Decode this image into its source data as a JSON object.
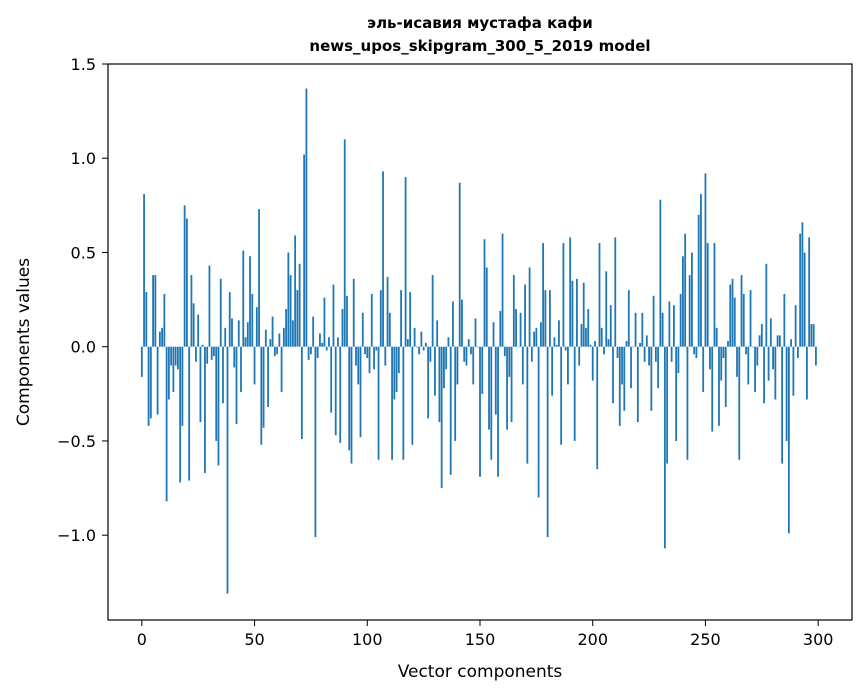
{
  "chart_data": {
    "type": "bar",
    "title_line1": "эль-исавия мустафа кафи",
    "title_line2": "news_upos_skipgram_300_5_2019 model",
    "xlabel": "Vector components",
    "ylabel": "Components values",
    "xlim": [
      -15,
      315
    ],
    "ylim": [
      -1.45,
      1.5
    ],
    "x_ticks": [
      0,
      50,
      100,
      150,
      200,
      250,
      300
    ],
    "x_tick_labels": [
      "0",
      "50",
      "100",
      "150",
      "200",
      "250",
      "300"
    ],
    "y_ticks": [
      -1.0,
      -0.5,
      0.0,
      0.5,
      1.0,
      1.5
    ],
    "y_tick_labels": [
      "−1.0",
      "−0.5",
      "0.0",
      "0.5",
      "1.0",
      "1.5"
    ],
    "color": "#1f77b4",
    "grid": false,
    "values": [
      -0.16,
      0.81,
      0.29,
      -0.42,
      -0.38,
      0.38,
      0.38,
      -0.36,
      0.08,
      0.1,
      0.28,
      -0.82,
      -0.28,
      -0.1,
      -0.24,
      -0.1,
      -0.12,
      -0.72,
      -0.42,
      0.75,
      0.68,
      -0.71,
      0.38,
      0.23,
      -0.08,
      0.17,
      -0.4,
      0.01,
      -0.67,
      -0.09,
      0.43,
      -0.07,
      -0.05,
      -0.5,
      -0.63,
      0.36,
      -0.3,
      0.1,
      -1.31,
      0.29,
      0.15,
      -0.11,
      -0.41,
      0.14,
      -0.24,
      0.51,
      0.05,
      0.13,
      0.48,
      0.28,
      -0.2,
      0.21,
      0.73,
      -0.52,
      -0.43,
      0.09,
      -0.32,
      0.04,
      0.16,
      -0.05,
      -0.04,
      0.07,
      -0.24,
      0.1,
      0.2,
      0.5,
      0.38,
      0.14,
      0.59,
      0.3,
      0.44,
      -0.49,
      1.02,
      1.37,
      -0.07,
      -0.04,
      0.16,
      -1.01,
      -0.06,
      0.07,
      0.02,
      0.26,
      -0.02,
      0.05,
      -0.35,
      0.33,
      -0.47,
      0.05,
      -0.51,
      0.2,
      1.1,
      0.27,
      -0.55,
      -0.62,
      0.36,
      -0.1,
      -0.2,
      -0.48,
      0.18,
      -0.04,
      -0.06,
      -0.14,
      0.28,
      -0.12,
      -0.02,
      -0.6,
      0.3,
      0.93,
      -0.1,
      0.37,
      0.18,
      -0.6,
      -0.28,
      -0.24,
      -0.14,
      0.3,
      -0.6,
      0.9,
      0.04,
      0.29,
      -0.52,
      0.1,
      0.0,
      -0.04,
      0.08,
      -0.02,
      0.02,
      -0.38,
      -0.08,
      0.38,
      -0.26,
      0.14,
      -0.4,
      -0.75,
      -0.22,
      -0.12,
      0.05,
      -0.68,
      0.24,
      -0.5,
      -0.2,
      0.87,
      0.25,
      -0.08,
      -0.1,
      0.04,
      -0.04,
      -0.2,
      0.15,
      0.0,
      -0.69,
      -0.25,
      0.57,
      0.42,
      -0.44,
      -0.6,
      0.13,
      -0.36,
      -0.69,
      0.19,
      0.6,
      -0.05,
      -0.44,
      -0.16,
      -0.4,
      0.38,
      0.2,
      0.0,
      0.18,
      -0.2,
      0.33,
      -0.62,
      0.42,
      -0.08,
      0.08,
      0.1,
      -0.8,
      0.13,
      0.55,
      0.3,
      -1.01,
      0.3,
      -0.26,
      0.05,
      0.01,
      0.14,
      -0.52,
      0.55,
      -0.02,
      -0.2,
      0.58,
      0.35,
      -0.5,
      0.36,
      -0.1,
      0.12,
      0.34,
      0.1,
      0.2,
      0.01,
      -0.18,
      0.03,
      -0.65,
      0.55,
      0.1,
      -0.04,
      0.4,
      0.04,
      0.22,
      -0.3,
      0.58,
      -0.06,
      -0.42,
      -0.2,
      -0.34,
      0.03,
      0.3,
      -0.22,
      0.0,
      0.18,
      -0.4,
      0.02,
      0.18,
      -0.08,
      0.06,
      -0.1,
      -0.34,
      0.27,
      -0.08,
      -0.22,
      0.78,
      0.18,
      -1.07,
      -0.62,
      0.24,
      -0.08,
      0.22,
      -0.5,
      -0.14,
      0.28,
      0.48,
      0.6,
      -0.6,
      0.38,
      0.5,
      -0.04,
      -0.06,
      0.7,
      0.81,
      -0.24,
      0.92,
      0.55,
      -0.12,
      -0.45,
      0.55,
      0.1,
      -0.42,
      -0.18,
      -0.06,
      -0.32,
      0.03,
      0.33,
      0.36,
      0.26,
      -0.16,
      -0.6,
      0.38,
      0.28,
      -0.04,
      -0.2,
      0.3,
      0.0,
      -0.24,
      -0.1,
      0.06,
      0.12,
      -0.3,
      0.44,
      -0.18,
      0.15,
      -0.12,
      -0.28,
      0.06,
      0.06,
      -0.62,
      0.28,
      -0.5,
      -0.99,
      0.04,
      -0.26,
      0.22,
      -0.06,
      0.6,
      0.66,
      0.5,
      -0.28,
      0.58,
      0.12,
      0.12,
      -0.1
    ]
  }
}
